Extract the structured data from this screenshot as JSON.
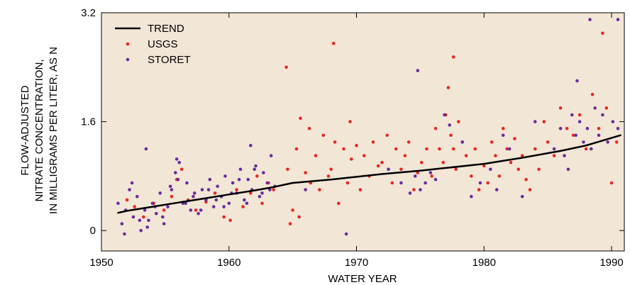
{
  "chart_data": {
    "type": "scatter",
    "title": "",
    "xlabel": "WATER YEAR",
    "ylabel": [
      "FLOW-ADJUSTED",
      "NITRATE CONCENTRATION,",
      "IN MILLIGRAMS PER LITER, AS N"
    ],
    "xlim": [
      1950,
      1991
    ],
    "ylim": [
      -0.3,
      3.2
    ],
    "xticks": [
      1950,
      1960,
      1970,
      1980,
      1990
    ],
    "yticks": [
      0,
      1.6,
      3.2
    ],
    "xtick_labels": [
      "1950",
      "1960",
      "1970",
      "1980",
      "1990"
    ],
    "ytick_labels": [
      "0",
      "1.6",
      "3.2"
    ],
    "grid": false,
    "legend_position": "top-left",
    "legend": [
      "TREND",
      "USGS",
      "STORET"
    ],
    "background_color": "#f2e6d6",
    "series": [
      {
        "name": "TREND",
        "type": "line",
        "color": "#000000",
        "x": [
          1951.3,
          1952,
          1954,
          1956,
          1958,
          1960,
          1962,
          1963.5,
          1965,
          1968,
          1970,
          1972,
          1975,
          1977,
          1980,
          1983,
          1986,
          1988,
          1990.7
        ],
        "y": [
          0.26,
          0.29,
          0.35,
          0.41,
          0.47,
          0.53,
          0.59,
          0.64,
          0.7,
          0.75,
          0.79,
          0.83,
          0.88,
          0.92,
          0.98,
          1.07,
          1.17,
          1.25,
          1.4
        ]
      },
      {
        "name": "USGS",
        "type": "scatter",
        "color": "#e8281e",
        "x": [
          1952.0,
          1952.6,
          1953.3,
          1954.1,
          1954.9,
          1955.5,
          1955.9,
          1956.3,
          1956.8,
          1957.4,
          1958.2,
          1958.9,
          1959.6,
          1960.1,
          1960.6,
          1961.1,
          1961.7,
          1962.2,
          1962.6,
          1963.1,
          1963.5,
          1964.5,
          1964.6,
          1964.8,
          1965.0,
          1965.3,
          1965.6,
          1966.0,
          1966.4,
          1966.8,
          1967.1,
          1967.4,
          1967.8,
          1968.0,
          1968.3,
          1968.6,
          1969.0,
          1969.3,
          1969.6,
          1970.0,
          1970.3,
          1970.6,
          1971.0,
          1971.3,
          1971.7,
          1972.0,
          1972.4,
          1972.8,
          1973.1,
          1973.5,
          1973.8,
          1974.1,
          1974.5,
          1974.8,
          1975.1,
          1975.5,
          1975.9,
          1976.2,
          1976.5,
          1976.8,
          1977.0,
          1977.2,
          1977.4,
          1977.6,
          1977.8,
          1978.0,
          1978.3,
          1978.6,
          1979.0,
          1979.3,
          1979.6,
          1980.0,
          1980.3,
          1980.6,
          1980.9,
          1981.2,
          1981.5,
          1981.8,
          1982.1,
          1982.4,
          1982.7,
          1983.0,
          1983.3,
          1983.6,
          1984.0,
          1984.3,
          1984.7,
          1985.0,
          1985.5,
          1986.0,
          1986.5,
          1987.0,
          1987.5,
          1988.0,
          1988.5,
          1989.0,
          1989.3,
          1989.6,
          1990.0,
          1990.4,
          1968.2,
          1977.6,
          1966.3,
          1965.5,
          1969.5
        ],
        "y": [
          0.45,
          0.35,
          0.2,
          0.4,
          0.3,
          0.5,
          0.75,
          0.9,
          0.45,
          0.3,
          0.42,
          0.55,
          0.2,
          0.15,
          0.6,
          0.35,
          0.55,
          0.8,
          0.4,
          0.7,
          0.6,
          2.4,
          0.9,
          0.1,
          0.3,
          1.2,
          1.65,
          0.85,
          0.7,
          1.1,
          0.6,
          1.4,
          0.8,
          0.9,
          1.3,
          0.4,
          1.2,
          0.7,
          1.05,
          1.25,
          0.6,
          1.1,
          0.8,
          1.3,
          0.95,
          1.0,
          1.4,
          0.7,
          1.2,
          0.9,
          1.1,
          1.3,
          0.6,
          0.85,
          1.0,
          1.2,
          0.8,
          1.5,
          1.2,
          1.0,
          1.7,
          2.1,
          1.4,
          1.2,
          0.9,
          1.6,
          1.3,
          1.1,
          0.8,
          1.2,
          0.6,
          0.95,
          0.7,
          1.3,
          1.1,
          0.8,
          1.5,
          1.2,
          1.0,
          1.35,
          0.9,
          1.1,
          0.75,
          0.6,
          1.2,
          0.9,
          1.6,
          1.3,
          1.1,
          1.8,
          1.5,
          1.4,
          1.7,
          1.2,
          2.0,
          1.5,
          2.9,
          1.8,
          0.7,
          1.3,
          2.75,
          2.55,
          1.5,
          0.2,
          1.6
        ]
      },
      {
        "name": "STORET",
        "type": "scatter",
        "color": "#6a2c9e",
        "x": [
          1951.3,
          1951.6,
          1951.9,
          1952.2,
          1952.5,
          1952.8,
          1953.1,
          1953.4,
          1953.7,
          1954.0,
          1954.3,
          1954.6,
          1954.9,
          1955.2,
          1955.5,
          1955.8,
          1956.1,
          1956.4,
          1956.7,
          1957.0,
          1957.3,
          1957.6,
          1957.9,
          1958.2,
          1958.5,
          1958.8,
          1959.1,
          1959.4,
          1959.7,
          1960.0,
          1960.3,
          1960.6,
          1960.9,
          1961.2,
          1961.5,
          1961.8,
          1962.1,
          1962.4,
          1962.7,
          1963.0,
          1963.3,
          1963.6,
          1951.8,
          1952.4,
          1953.0,
          1953.6,
          1954.2,
          1954.8,
          1955.4,
          1956.0,
          1956.6,
          1957.2,
          1957.8,
          1958.4,
          1959.0,
          1959.6,
          1960.2,
          1960.8,
          1961.4,
          1962.0,
          1962.6,
          1963.2,
          1953.5,
          1955.9,
          1961.7,
          1966.0,
          1969.2,
          1972.5,
          1973.5,
          1974.2,
          1974.6,
          1975.0,
          1975.4,
          1975.8,
          1976.2,
          1976.9,
          1977.3,
          1978.3,
          1979.0,
          1979.7,
          1980.5,
          1981.0,
          1981.5,
          1982.0,
          1983.0,
          1984.0,
          1985.5,
          1986.0,
          1986.3,
          1986.6,
          1986.9,
          1987.2,
          1987.5,
          1987.8,
          1988.1,
          1988.4,
          1988.7,
          1989.0,
          1989.3,
          1989.7,
          1990.1,
          1990.5,
          1974.8,
          1988.3,
          1990.5,
          1987.3
        ],
        "y": [
          0.4,
          0.1,
          0.3,
          0.6,
          0.2,
          0.5,
          0.0,
          0.3,
          0.15,
          0.4,
          0.25,
          0.55,
          0.1,
          0.35,
          0.6,
          0.85,
          1.0,
          0.4,
          0.7,
          0.3,
          0.55,
          0.25,
          0.6,
          0.45,
          0.75,
          0.35,
          0.65,
          0.5,
          0.8,
          0.4,
          0.7,
          0.55,
          0.9,
          0.45,
          0.75,
          0.6,
          0.95,
          0.5,
          0.85,
          0.7,
          1.1,
          0.65,
          -0.05,
          0.7,
          0.15,
          0.05,
          0.35,
          0.2,
          0.65,
          0.75,
          0.4,
          0.5,
          0.3,
          0.6,
          0.45,
          0.35,
          0.55,
          0.75,
          0.4,
          0.9,
          0.55,
          0.6,
          1.2,
          1.05,
          1.25,
          0.6,
          -0.05,
          0.9,
          0.7,
          0.55,
          0.8,
          0.6,
          0.7,
          0.85,
          0.75,
          1.7,
          1.55,
          1.3,
          0.5,
          0.7,
          0.9,
          0.6,
          1.4,
          1.2,
          0.5,
          1.6,
          1.2,
          1.5,
          1.1,
          0.9,
          1.7,
          1.4,
          1.6,
          1.3,
          1.5,
          1.2,
          1.8,
          1.4,
          1.7,
          1.3,
          1.6,
          1.5,
          2.35,
          3.1,
          3.1,
          2.2
        ]
      }
    ]
  }
}
